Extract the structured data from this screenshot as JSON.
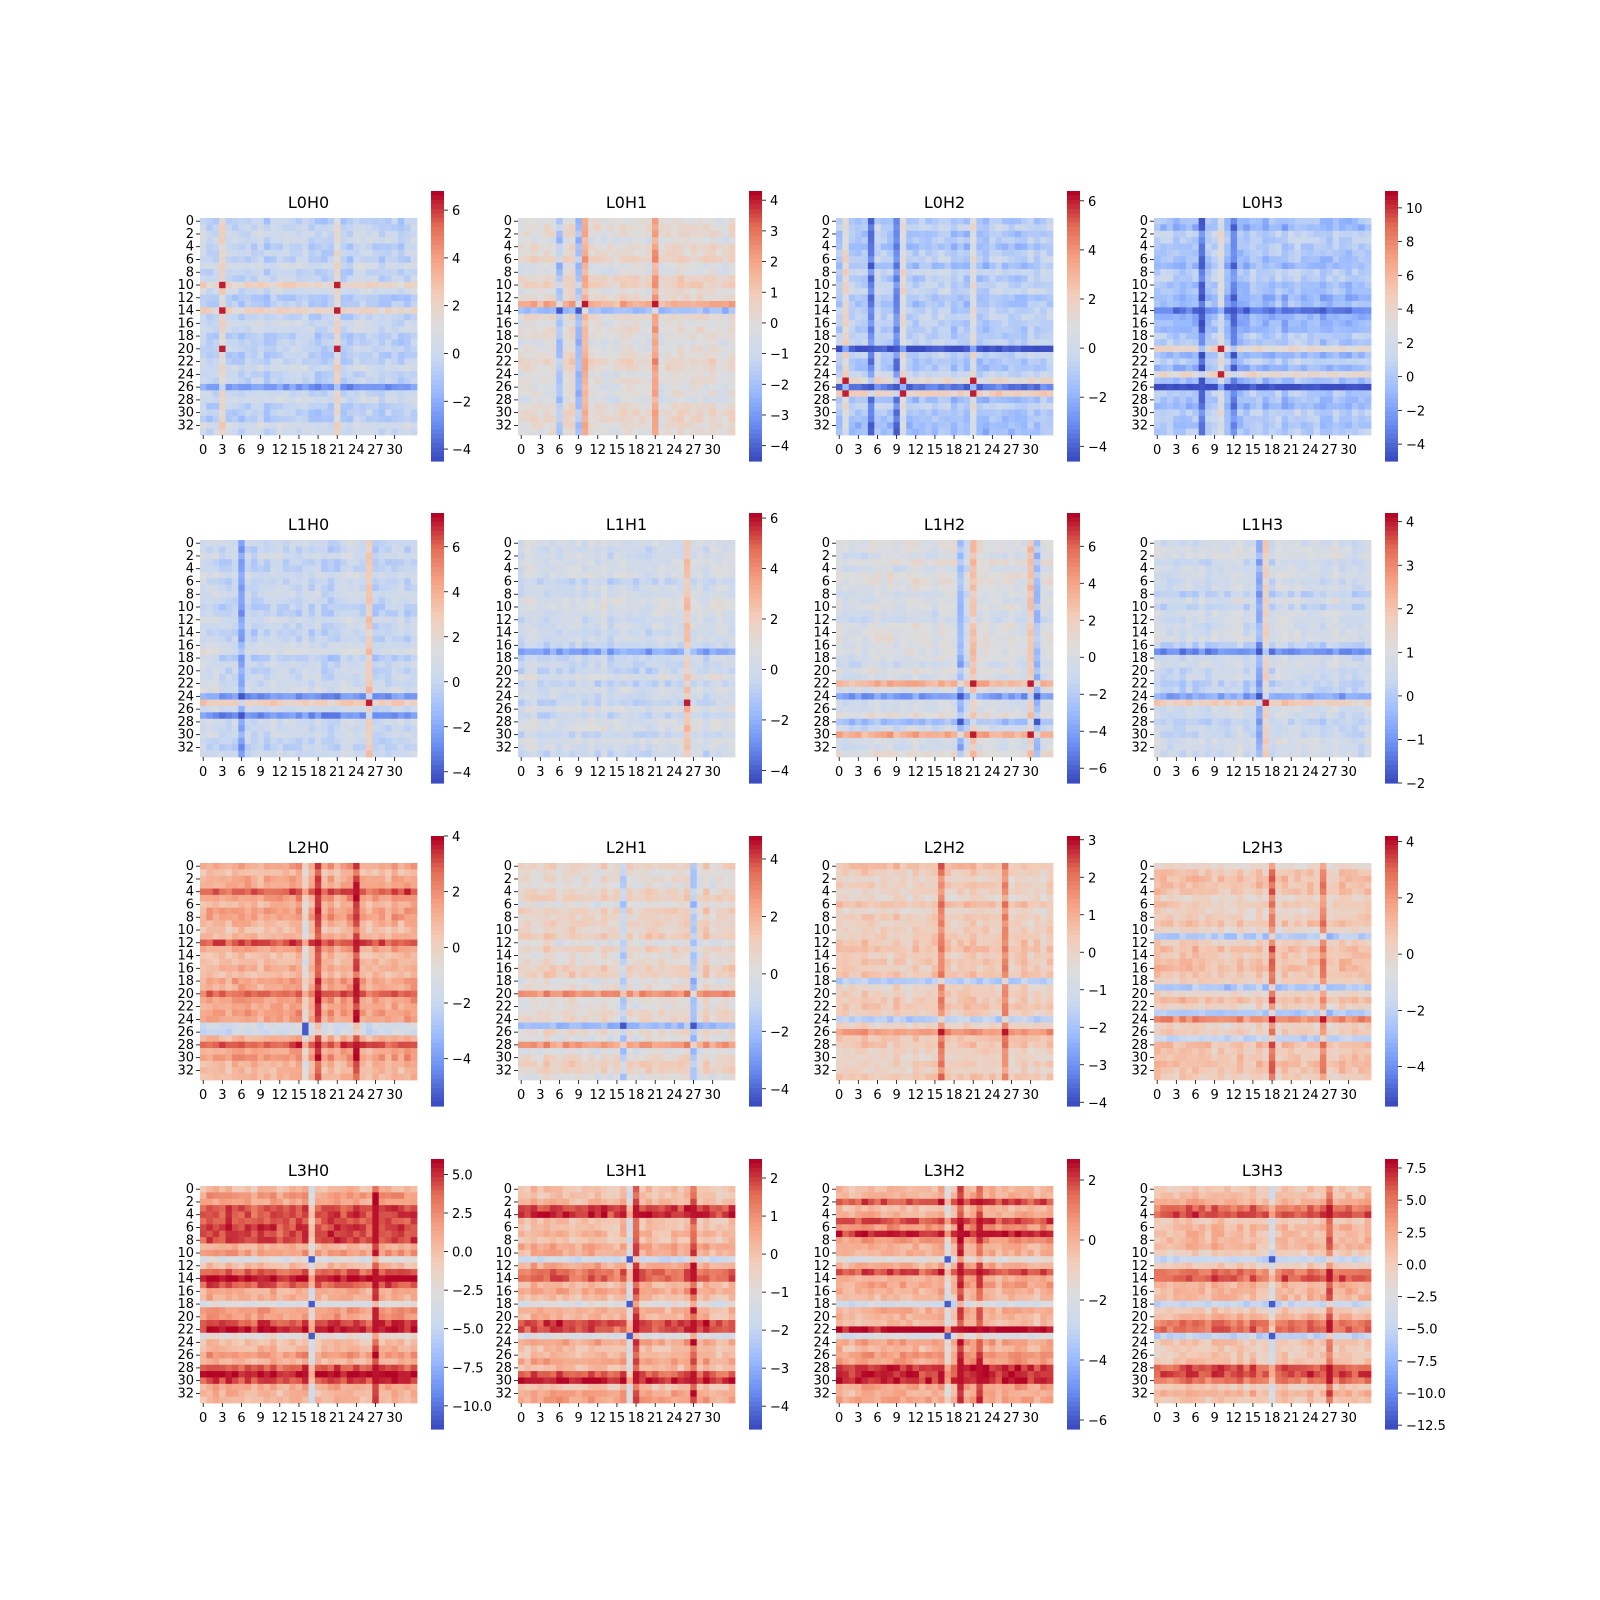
{
  "figure": {
    "rows": 4,
    "cols": 4,
    "colormap": "coolwarm",
    "colormap_stops": [
      "#3b4cc0",
      "#688aef",
      "#99baff",
      "#c9d8f0",
      "#dddddd",
      "#f2cbb7",
      "#f6a385",
      "#e36c55",
      "#b40426"
    ],
    "tick_labels": [
      "0",
      "3",
      "6",
      "9",
      "12",
      "15",
      "18",
      "21",
      "24",
      "27",
      "30"
    ],
    "row_tick_labels": [
      "0",
      "2",
      "4",
      "6",
      "8",
      "10",
      "12",
      "14",
      "16",
      "18",
      "20",
      "22",
      "24",
      "26",
      "28",
      "30",
      "32"
    ]
  },
  "chart_data": [
    {
      "type": "heatmap",
      "title": "L0H0",
      "size": 34,
      "vmin": -4.5,
      "vmax": 6.8,
      "mean": -0.2,
      "cbar_ticks": [
        "6",
        "4",
        "2",
        "0",
        "−2",
        "−4"
      ],
      "cbar_values": [
        6,
        4,
        2,
        0,
        -2,
        -4
      ],
      "hot_rows": [
        10,
        14,
        20
      ],
      "cold_rows": [
        20,
        26
      ],
      "hot_cols": [
        3,
        21
      ],
      "cold_cols": []
    },
    {
      "type": "heatmap",
      "title": "L0H1",
      "size": 34,
      "vmin": -4.5,
      "vmax": 4.3,
      "mean": 0.2,
      "cbar_ticks": [
        "4",
        "3",
        "2",
        "1",
        "0",
        "−1",
        "−2",
        "−3",
        "−4"
      ],
      "cbar_values": [
        4,
        3,
        2,
        1,
        0,
        -1,
        -2,
        -3,
        -4
      ],
      "hot_rows": [
        13
      ],
      "cold_rows": [
        14
      ],
      "hot_cols": [
        10,
        21
      ],
      "cold_cols": [
        6,
        9
      ]
    },
    {
      "type": "heatmap",
      "title": "L0H2",
      "size": 34,
      "vmin": -4.6,
      "vmax": 6.4,
      "mean": -1.0,
      "cbar_ticks": [
        "6",
        "4",
        "2",
        "0",
        "−2",
        "−4"
      ],
      "cbar_values": [
        6,
        4,
        2,
        0,
        -2,
        -4
      ],
      "hot_rows": [
        25,
        27
      ],
      "cold_rows": [
        20,
        26
      ],
      "hot_cols": [
        1,
        10,
        21
      ],
      "cold_cols": [
        5,
        9
      ]
    },
    {
      "type": "heatmap",
      "title": "L0H3",
      "size": 34,
      "vmin": -5.0,
      "vmax": 11.0,
      "mean": -0.3,
      "cbar_ticks": [
        "10",
        "8",
        "6",
        "4",
        "2",
        "0",
        "−2",
        "−4"
      ],
      "cbar_values": [
        10,
        8,
        6,
        4,
        2,
        0,
        -2,
        -4
      ],
      "hot_rows": [
        20,
        24
      ],
      "cold_rows": [
        14,
        26
      ],
      "hot_cols": [
        10
      ],
      "cold_cols": [
        7,
        12
      ]
    },
    {
      "type": "heatmap",
      "title": "L1H0",
      "size": 34,
      "vmin": -4.5,
      "vmax": 7.5,
      "mean": 0.3,
      "cbar_ticks": [
        "6",
        "4",
        "2",
        "0",
        "−2",
        "−4"
      ],
      "cbar_values": [
        6,
        4,
        2,
        0,
        -2,
        -4
      ],
      "hot_rows": [
        25
      ],
      "cold_rows": [
        24,
        27
      ],
      "hot_cols": [
        26
      ],
      "cold_cols": [
        6
      ]
    },
    {
      "type": "heatmap",
      "title": "L1H1",
      "size": 34,
      "vmin": -4.5,
      "vmax": 6.2,
      "mean": 0.0,
      "cbar_ticks": [
        "6",
        "4",
        "2",
        "0",
        "−2",
        "−4"
      ],
      "cbar_values": [
        6,
        4,
        2,
        0,
        -2,
        -4
      ],
      "hot_rows": [
        25
      ],
      "cold_rows": [
        17,
        25
      ],
      "hot_cols": [
        26
      ],
      "cold_cols": []
    },
    {
      "type": "heatmap",
      "title": "L1H2",
      "size": 34,
      "vmin": -6.8,
      "vmax": 7.8,
      "mean": 0.0,
      "cbar_ticks": [
        "6",
        "4",
        "2",
        "0",
        "−2",
        "−4",
        "−6"
      ],
      "cbar_values": [
        6,
        4,
        2,
        0,
        -2,
        -4,
        -6
      ],
      "hot_rows": [
        22,
        30
      ],
      "cold_rows": [
        24,
        28
      ],
      "hot_cols": [
        21,
        30
      ],
      "cold_cols": [
        19,
        31
      ]
    },
    {
      "type": "heatmap",
      "title": "L1H3",
      "size": 34,
      "vmin": -2.0,
      "vmax": 4.2,
      "mean": 0.5,
      "cbar_ticks": [
        "4",
        "3",
        "2",
        "1",
        "0",
        "−1",
        "−2"
      ],
      "cbar_values": [
        4,
        3,
        2,
        1,
        0,
        -1,
        -2
      ],
      "hot_rows": [
        25
      ],
      "cold_rows": [
        24,
        17
      ],
      "hot_cols": [
        17
      ],
      "cold_cols": [
        16
      ]
    },
    {
      "type": "heatmap",
      "title": "L2H0",
      "size": 34,
      "vmin": -5.7,
      "vmax": 4.0,
      "mean": 1.2,
      "cbar_ticks": [
        "4",
        "2",
        "0",
        "−2",
        "−4"
      ],
      "cbar_values": [
        4,
        2,
        0,
        -2,
        -4
      ],
      "hot_rows": [
        4,
        12,
        20,
        28
      ],
      "cold_rows": [
        25,
        26
      ],
      "hot_cols": [
        18,
        24
      ],
      "cold_cols": [
        16
      ]
    },
    {
      "type": "heatmap",
      "title": "L2H1",
      "size": 34,
      "vmin": -4.6,
      "vmax": 4.8,
      "mean": 0.5,
      "cbar_ticks": [
        "4",
        "2",
        "0",
        "−2",
        "−4"
      ],
      "cbar_values": [
        4,
        2,
        0,
        -2,
        -4
      ],
      "hot_rows": [
        20,
        28
      ],
      "cold_rows": [
        25
      ],
      "hot_cols": [],
      "cold_cols": [
        16,
        27
      ]
    },
    {
      "type": "heatmap",
      "title": "L2H2",
      "size": 34,
      "vmin": -4.1,
      "vmax": 3.1,
      "mean": 0.2,
      "cbar_ticks": [
        "3",
        "2",
        "1",
        "0",
        "−1",
        "−2",
        "−3",
        "−4"
      ],
      "cbar_values": [
        3,
        2,
        1,
        0,
        -1,
        -2,
        -3,
        -4
      ],
      "hot_rows": [
        26
      ],
      "cold_rows": [
        24,
        18
      ],
      "hot_cols": [
        16,
        26
      ],
      "cold_cols": []
    },
    {
      "type": "heatmap",
      "title": "L2H3",
      "size": 34,
      "vmin": -5.4,
      "vmax": 4.2,
      "mean": 0.4,
      "cbar_ticks": [
        "4",
        "2",
        "0",
        "−2",
        "−4"
      ],
      "cbar_values": [
        4,
        2,
        0,
        -2,
        -4
      ],
      "hot_rows": [
        24
      ],
      "cold_rows": [
        11,
        19,
        23,
        27
      ],
      "hot_cols": [
        18,
        26
      ],
      "cold_cols": []
    },
    {
      "type": "heatmap",
      "title": "L3H0",
      "size": 34,
      "vmin": -11.5,
      "vmax": 6.0,
      "mean": 1.0,
      "cbar_ticks": [
        "5.0",
        "2.5",
        "0.0",
        "−2.5",
        "−5.0",
        "−7.5",
        "−10.0"
      ],
      "cbar_values": [
        5.0,
        2.5,
        0.0,
        -2.5,
        -5.0,
        -7.5,
        -10.0
      ],
      "hot_rows": [
        3,
        4,
        5,
        6,
        7,
        8,
        13,
        14,
        15,
        21,
        22,
        28,
        29,
        30
      ],
      "cold_rows": [
        11,
        18,
        23
      ],
      "hot_cols": [
        27
      ],
      "cold_cols": [
        17
      ]
    },
    {
      "type": "heatmap",
      "title": "L3H1",
      "size": 34,
      "vmin": -4.6,
      "vmax": 2.5,
      "mean": 0.3,
      "cbar_ticks": [
        "2",
        "1",
        "0",
        "−1",
        "−2",
        "−3",
        "−4"
      ],
      "cbar_values": [
        2,
        1,
        0,
        -1,
        -2,
        -3,
        -4
      ],
      "hot_rows": [
        3,
        4,
        13,
        14,
        21,
        22,
        29,
        30
      ],
      "cold_rows": [
        11,
        18,
        23
      ],
      "hot_cols": [
        18,
        27
      ],
      "cold_cols": [
        17
      ]
    },
    {
      "type": "heatmap",
      "title": "L3H2",
      "size": 34,
      "vmin": -6.3,
      "vmax": 2.7,
      "mean": 0.2,
      "cbar_ticks": [
        "2",
        "0",
        "−2",
        "−4",
        "−6"
      ],
      "cbar_values": [
        2,
        0,
        -2,
        -4,
        -6
      ],
      "hot_rows": [
        2,
        5,
        7,
        13,
        22,
        28,
        29,
        30
      ],
      "cold_rows": [
        11,
        18,
        23
      ],
      "hot_cols": [
        19,
        22
      ],
      "cold_cols": [
        17
      ]
    },
    {
      "type": "heatmap",
      "title": "L3H3",
      "size": 34,
      "vmin": -12.8,
      "vmax": 8.2,
      "mean": 1.0,
      "cbar_ticks": [
        "7.5",
        "5.0",
        "2.5",
        "0.0",
        "−2.5",
        "−5.0",
        "−7.5",
        "−10.0",
        "−12.5"
      ],
      "cbar_values": [
        7.5,
        5.0,
        2.5,
        0.0,
        -2.5,
        -5.0,
        -7.5,
        -10.0,
        -12.5
      ],
      "hot_rows": [
        3,
        4,
        13,
        14,
        21,
        22,
        28,
        29,
        30
      ],
      "cold_rows": [
        11,
        18,
        23
      ],
      "hot_cols": [
        27
      ],
      "cold_cols": [
        18
      ]
    }
  ]
}
